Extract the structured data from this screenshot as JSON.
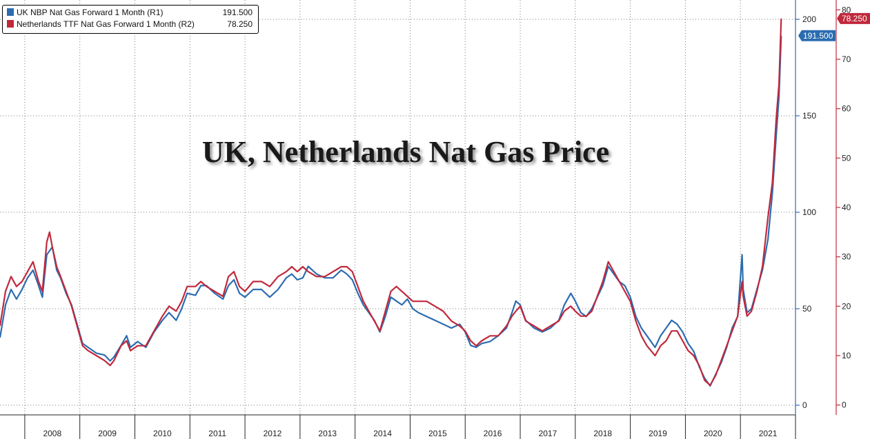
{
  "chart_data": {
    "type": "line",
    "title": "UK, Netherlands Nat Gas Price",
    "x_ticks": [
      "2008",
      "2009",
      "2010",
      "2011",
      "2012",
      "2013",
      "2014",
      "2015",
      "2016",
      "2017",
      "2018",
      "2019",
      "2020",
      "2021"
    ],
    "xlim": [
      2007.55,
      2022.0
    ],
    "axes": {
      "R1": {
        "ticks": [
          "0",
          "50",
          "100",
          "150",
          "200"
        ],
        "ylim": [
          -5,
          210
        ],
        "color": "#2b6cb0"
      },
      "R2": {
        "ticks": [
          "0",
          "10",
          "20",
          "30",
          "40",
          "50",
          "60",
          "70",
          "80"
        ],
        "ylim": [
          -2,
          82
        ],
        "color": "#c0283c"
      }
    },
    "grid": true,
    "legend": "top-left",
    "series": [
      {
        "name": "UK NBP Nat Gas Forward 1 Month (R1)",
        "axis": "R1",
        "color": "#2b6cb0",
        "last_value": "191.500",
        "points": [
          [
            2007.55,
            35
          ],
          [
            2007.65,
            52
          ],
          [
            2007.75,
            60
          ],
          [
            2007.85,
            55
          ],
          [
            2007.95,
            60
          ],
          [
            2008.05,
            66
          ],
          [
            2008.15,
            70
          ],
          [
            2008.25,
            62
          ],
          [
            2008.32,
            56
          ],
          [
            2008.4,
            78
          ],
          [
            2008.5,
            82
          ],
          [
            2008.58,
            70
          ],
          [
            2008.65,
            66
          ],
          [
            2008.75,
            58
          ],
          [
            2008.85,
            52
          ],
          [
            2008.95,
            42
          ],
          [
            2009.05,
            32
          ],
          [
            2009.15,
            30
          ],
          [
            2009.3,
            27
          ],
          [
            2009.45,
            26
          ],
          [
            2009.55,
            23
          ],
          [
            2009.62,
            25
          ],
          [
            2009.75,
            31
          ],
          [
            2009.85,
            36
          ],
          [
            2009.92,
            30
          ],
          [
            2010.05,
            33
          ],
          [
            2010.2,
            30
          ],
          [
            2010.35,
            38
          ],
          [
            2010.5,
            44
          ],
          [
            2010.62,
            48
          ],
          [
            2010.75,
            44
          ],
          [
            2010.85,
            50
          ],
          [
            2010.95,
            58
          ],
          [
            2011.1,
            57
          ],
          [
            2011.2,
            62
          ],
          [
            2011.3,
            62
          ],
          [
            2011.45,
            58
          ],
          [
            2011.6,
            55
          ],
          [
            2011.7,
            62
          ],
          [
            2011.8,
            65
          ],
          [
            2011.9,
            58
          ],
          [
            2012.0,
            56
          ],
          [
            2012.15,
            60
          ],
          [
            2012.3,
            60
          ],
          [
            2012.45,
            56
          ],
          [
            2012.6,
            60
          ],
          [
            2012.75,
            66
          ],
          [
            2012.85,
            68
          ],
          [
            2012.95,
            65
          ],
          [
            2013.05,
            66
          ],
          [
            2013.15,
            72
          ],
          [
            2013.3,
            68
          ],
          [
            2013.45,
            66
          ],
          [
            2013.6,
            66
          ],
          [
            2013.75,
            70
          ],
          [
            2013.85,
            68
          ],
          [
            2013.95,
            65
          ],
          [
            2014.05,
            58
          ],
          [
            2014.15,
            52
          ],
          [
            2014.25,
            48
          ],
          [
            2014.35,
            44
          ],
          [
            2014.45,
            38
          ],
          [
            2014.55,
            46
          ],
          [
            2014.65,
            56
          ],
          [
            2014.75,
            54
          ],
          [
            2014.85,
            52
          ],
          [
            2014.95,
            55
          ],
          [
            2015.05,
            50
          ],
          [
            2015.15,
            48
          ],
          [
            2015.3,
            46
          ],
          [
            2015.45,
            44
          ],
          [
            2015.6,
            42
          ],
          [
            2015.75,
            40
          ],
          [
            2015.9,
            42
          ],
          [
            2016.0,
            38
          ],
          [
            2016.1,
            31
          ],
          [
            2016.2,
            30
          ],
          [
            2016.3,
            32
          ],
          [
            2016.45,
            33
          ],
          [
            2016.6,
            36
          ],
          [
            2016.75,
            40
          ],
          [
            2016.85,
            48
          ],
          [
            2016.92,
            54
          ],
          [
            2017.0,
            52
          ],
          [
            2017.1,
            44
          ],
          [
            2017.25,
            40
          ],
          [
            2017.4,
            38
          ],
          [
            2017.55,
            40
          ],
          [
            2017.7,
            44
          ],
          [
            2017.8,
            52
          ],
          [
            2017.92,
            58
          ],
          [
            2018.0,
            54
          ],
          [
            2018.1,
            48
          ],
          [
            2018.2,
            46
          ],
          [
            2018.3,
            50
          ],
          [
            2018.4,
            56
          ],
          [
            2018.5,
            62
          ],
          [
            2018.6,
            72
          ],
          [
            2018.7,
            68
          ],
          [
            2018.8,
            64
          ],
          [
            2018.9,
            62
          ],
          [
            2019.0,
            56
          ],
          [
            2019.1,
            46
          ],
          [
            2019.2,
            40
          ],
          [
            2019.3,
            36
          ],
          [
            2019.45,
            30
          ],
          [
            2019.55,
            36
          ],
          [
            2019.65,
            40
          ],
          [
            2019.75,
            44
          ],
          [
            2019.85,
            42
          ],
          [
            2019.95,
            38
          ],
          [
            2020.05,
            32
          ],
          [
            2020.15,
            28
          ],
          [
            2020.25,
            20
          ],
          [
            2020.35,
            14
          ],
          [
            2020.45,
            10
          ],
          [
            2020.55,
            16
          ],
          [
            2020.65,
            22
          ],
          [
            2020.75,
            30
          ],
          [
            2020.85,
            40
          ],
          [
            2020.95,
            46
          ],
          [
            2021.03,
            78
          ],
          [
            2021.05,
            60
          ],
          [
            2021.12,
            48
          ],
          [
            2021.2,
            50
          ],
          [
            2021.3,
            60
          ],
          [
            2021.4,
            70
          ],
          [
            2021.5,
            86
          ],
          [
            2021.58,
            110
          ],
          [
            2021.65,
            140
          ],
          [
            2021.7,
            160
          ],
          [
            2021.74,
            191.5
          ]
        ]
      },
      {
        "name": "Netherlands TTF Nat Gas Forward 1 Month (R2)",
        "axis": "R2",
        "color": "#c0283c",
        "last_value": "78.250",
        "points": [
          [
            2007.55,
            16
          ],
          [
            2007.65,
            23
          ],
          [
            2007.75,
            26
          ],
          [
            2007.85,
            24
          ],
          [
            2007.95,
            25
          ],
          [
            2008.05,
            27
          ],
          [
            2008.15,
            29
          ],
          [
            2008.25,
            25
          ],
          [
            2008.32,
            23
          ],
          [
            2008.4,
            33
          ],
          [
            2008.45,
            35
          ],
          [
            2008.5,
            32
          ],
          [
            2008.58,
            28
          ],
          [
            2008.65,
            26
          ],
          [
            2008.75,
            23
          ],
          [
            2008.85,
            20
          ],
          [
            2008.95,
            16
          ],
          [
            2009.05,
            12
          ],
          [
            2009.15,
            11
          ],
          [
            2009.3,
            10
          ],
          [
            2009.45,
            9
          ],
          [
            2009.55,
            8
          ],
          [
            2009.62,
            9
          ],
          [
            2009.75,
            12
          ],
          [
            2009.85,
            13
          ],
          [
            2009.92,
            11
          ],
          [
            2010.05,
            12
          ],
          [
            2010.2,
            12
          ],
          [
            2010.35,
            15
          ],
          [
            2010.5,
            18
          ],
          [
            2010.62,
            20
          ],
          [
            2010.75,
            19
          ],
          [
            2010.85,
            21
          ],
          [
            2010.95,
            24
          ],
          [
            2011.1,
            24
          ],
          [
            2011.2,
            25
          ],
          [
            2011.3,
            24
          ],
          [
            2011.45,
            23
          ],
          [
            2011.6,
            22
          ],
          [
            2011.7,
            26
          ],
          [
            2011.8,
            27
          ],
          [
            2011.9,
            24
          ],
          [
            2012.0,
            23
          ],
          [
            2012.15,
            25
          ],
          [
            2012.3,
            25
          ],
          [
            2012.45,
            24
          ],
          [
            2012.6,
            26
          ],
          [
            2012.75,
            27
          ],
          [
            2012.85,
            28
          ],
          [
            2012.95,
            27
          ],
          [
            2013.05,
            28
          ],
          [
            2013.15,
            27
          ],
          [
            2013.3,
            26
          ],
          [
            2013.45,
            26
          ],
          [
            2013.6,
            27
          ],
          [
            2013.75,
            28
          ],
          [
            2013.85,
            28
          ],
          [
            2013.95,
            27
          ],
          [
            2014.05,
            24
          ],
          [
            2014.15,
            21
          ],
          [
            2014.25,
            19
          ],
          [
            2014.35,
            17
          ],
          [
            2014.45,
            15
          ],
          [
            2014.55,
            19
          ],
          [
            2014.65,
            23
          ],
          [
            2014.75,
            24
          ],
          [
            2014.85,
            23
          ],
          [
            2014.95,
            22
          ],
          [
            2015.05,
            21
          ],
          [
            2015.15,
            21
          ],
          [
            2015.3,
            21
          ],
          [
            2015.45,
            20
          ],
          [
            2015.6,
            19
          ],
          [
            2015.75,
            17
          ],
          [
            2015.9,
            16
          ],
          [
            2016.0,
            15
          ],
          [
            2016.1,
            13
          ],
          [
            2016.2,
            12
          ],
          [
            2016.3,
            13
          ],
          [
            2016.45,
            14
          ],
          [
            2016.6,
            14
          ],
          [
            2016.75,
            16
          ],
          [
            2016.85,
            18
          ],
          [
            2016.92,
            19
          ],
          [
            2017.0,
            20
          ],
          [
            2017.1,
            17
          ],
          [
            2017.25,
            16
          ],
          [
            2017.4,
            15
          ],
          [
            2017.55,
            16
          ],
          [
            2017.7,
            17
          ],
          [
            2017.8,
            19
          ],
          [
            2017.92,
            20
          ],
          [
            2018.0,
            19
          ],
          [
            2018.1,
            18
          ],
          [
            2018.2,
            18
          ],
          [
            2018.3,
            19
          ],
          [
            2018.4,
            22
          ],
          [
            2018.5,
            25
          ],
          [
            2018.6,
            29
          ],
          [
            2018.7,
            27
          ],
          [
            2018.8,
            25
          ],
          [
            2018.9,
            23
          ],
          [
            2019.0,
            21
          ],
          [
            2019.1,
            17
          ],
          [
            2019.2,
            14
          ],
          [
            2019.3,
            12
          ],
          [
            2019.45,
            10
          ],
          [
            2019.55,
            12
          ],
          [
            2019.65,
            13
          ],
          [
            2019.75,
            15
          ],
          [
            2019.85,
            15
          ],
          [
            2019.95,
            13
          ],
          [
            2020.05,
            11
          ],
          [
            2020.15,
            10
          ],
          [
            2020.25,
            8
          ],
          [
            2020.35,
            5
          ],
          [
            2020.45,
            4
          ],
          [
            2020.55,
            6
          ],
          [
            2020.65,
            9
          ],
          [
            2020.75,
            12
          ],
          [
            2020.85,
            15
          ],
          [
            2020.95,
            18
          ],
          [
            2021.03,
            25
          ],
          [
            2021.05,
            22
          ],
          [
            2021.12,
            18
          ],
          [
            2021.2,
            19
          ],
          [
            2021.3,
            23
          ],
          [
            2021.4,
            28
          ],
          [
            2021.5,
            38
          ],
          [
            2021.58,
            45
          ],
          [
            2021.65,
            58
          ],
          [
            2021.7,
            65
          ],
          [
            2021.74,
            78.25
          ]
        ]
      }
    ]
  }
}
